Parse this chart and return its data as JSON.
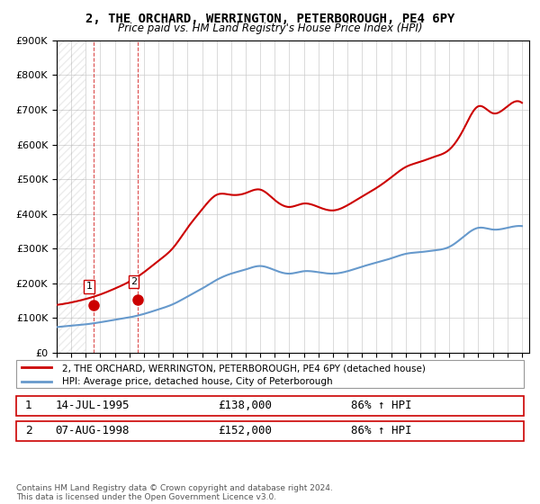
{
  "title": "2, THE ORCHARD, WERRINGTON, PETERBOROUGH, PE4 6PY",
  "subtitle": "Price paid vs. HM Land Registry's House Price Index (HPI)",
  "legend_line1": "2, THE ORCHARD, WERRINGTON, PETERBOROUGH, PE4 6PY (detached house)",
  "legend_line2": "HPI: Average price, detached house, City of Peterborough",
  "footer": "Contains HM Land Registry data © Crown copyright and database right 2024.\nThis data is licensed under the Open Government Licence v3.0.",
  "sale1_label": "1",
  "sale1_date": "14-JUL-1995",
  "sale1_price": "£138,000",
  "sale1_hpi": "86% ↑ HPI",
  "sale2_label": "2",
  "sale2_date": "07-AUG-1998",
  "sale2_price": "£152,000",
  "sale2_hpi": "86% ↑ HPI",
  "sale1_year": 1995.54,
  "sale1_value": 138000,
  "sale2_year": 1998.6,
  "sale2_value": 152000,
  "hpi_color": "#6699cc",
  "price_color": "#cc0000",
  "sale_marker_color": "#cc0000",
  "ylim": [
    0,
    900000
  ],
  "xlim_start": 1993,
  "xlim_end": 2025.5,
  "hpi_years": [
    1993,
    1994,
    1995,
    1996,
    1997,
    1998,
    1999,
    2000,
    2001,
    2002,
    2003,
    2004,
    2005,
    2006,
    2007,
    2008,
    2009,
    2010,
    2011,
    2012,
    2013,
    2014,
    2015,
    2016,
    2017,
    2018,
    2019,
    2020,
    2021,
    2022,
    2023,
    2024,
    2025
  ],
  "hpi_values": [
    74000,
    78000,
    82000,
    88000,
    95000,
    102000,
    112000,
    125000,
    140000,
    162000,
    185000,
    210000,
    228000,
    240000,
    250000,
    238000,
    228000,
    235000,
    232000,
    228000,
    235000,
    248000,
    260000,
    272000,
    285000,
    290000,
    295000,
    305000,
    335000,
    360000,
    355000,
    360000,
    365000
  ],
  "price_years": [
    1993,
    1994,
    1995,
    1996,
    1997,
    1998,
    1999,
    2000,
    2001,
    2002,
    2003,
    2004,
    2005,
    2006,
    2007,
    2008,
    2009,
    2010,
    2011,
    2012,
    2013,
    2014,
    2015,
    2016,
    2017,
    2018,
    2019,
    2020,
    2021,
    2022,
    2023,
    2024,
    2025
  ],
  "price_values": [
    138000,
    145000,
    155000,
    168000,
    185000,
    205000,
    232000,
    265000,
    302000,
    360000,
    413000,
    455000,
    455000,
    460000,
    470000,
    440000,
    420000,
    430000,
    420000,
    410000,
    425000,
    450000,
    475000,
    505000,
    535000,
    550000,
    565000,
    585000,
    645000,
    710000,
    690000,
    710000,
    720000
  ]
}
